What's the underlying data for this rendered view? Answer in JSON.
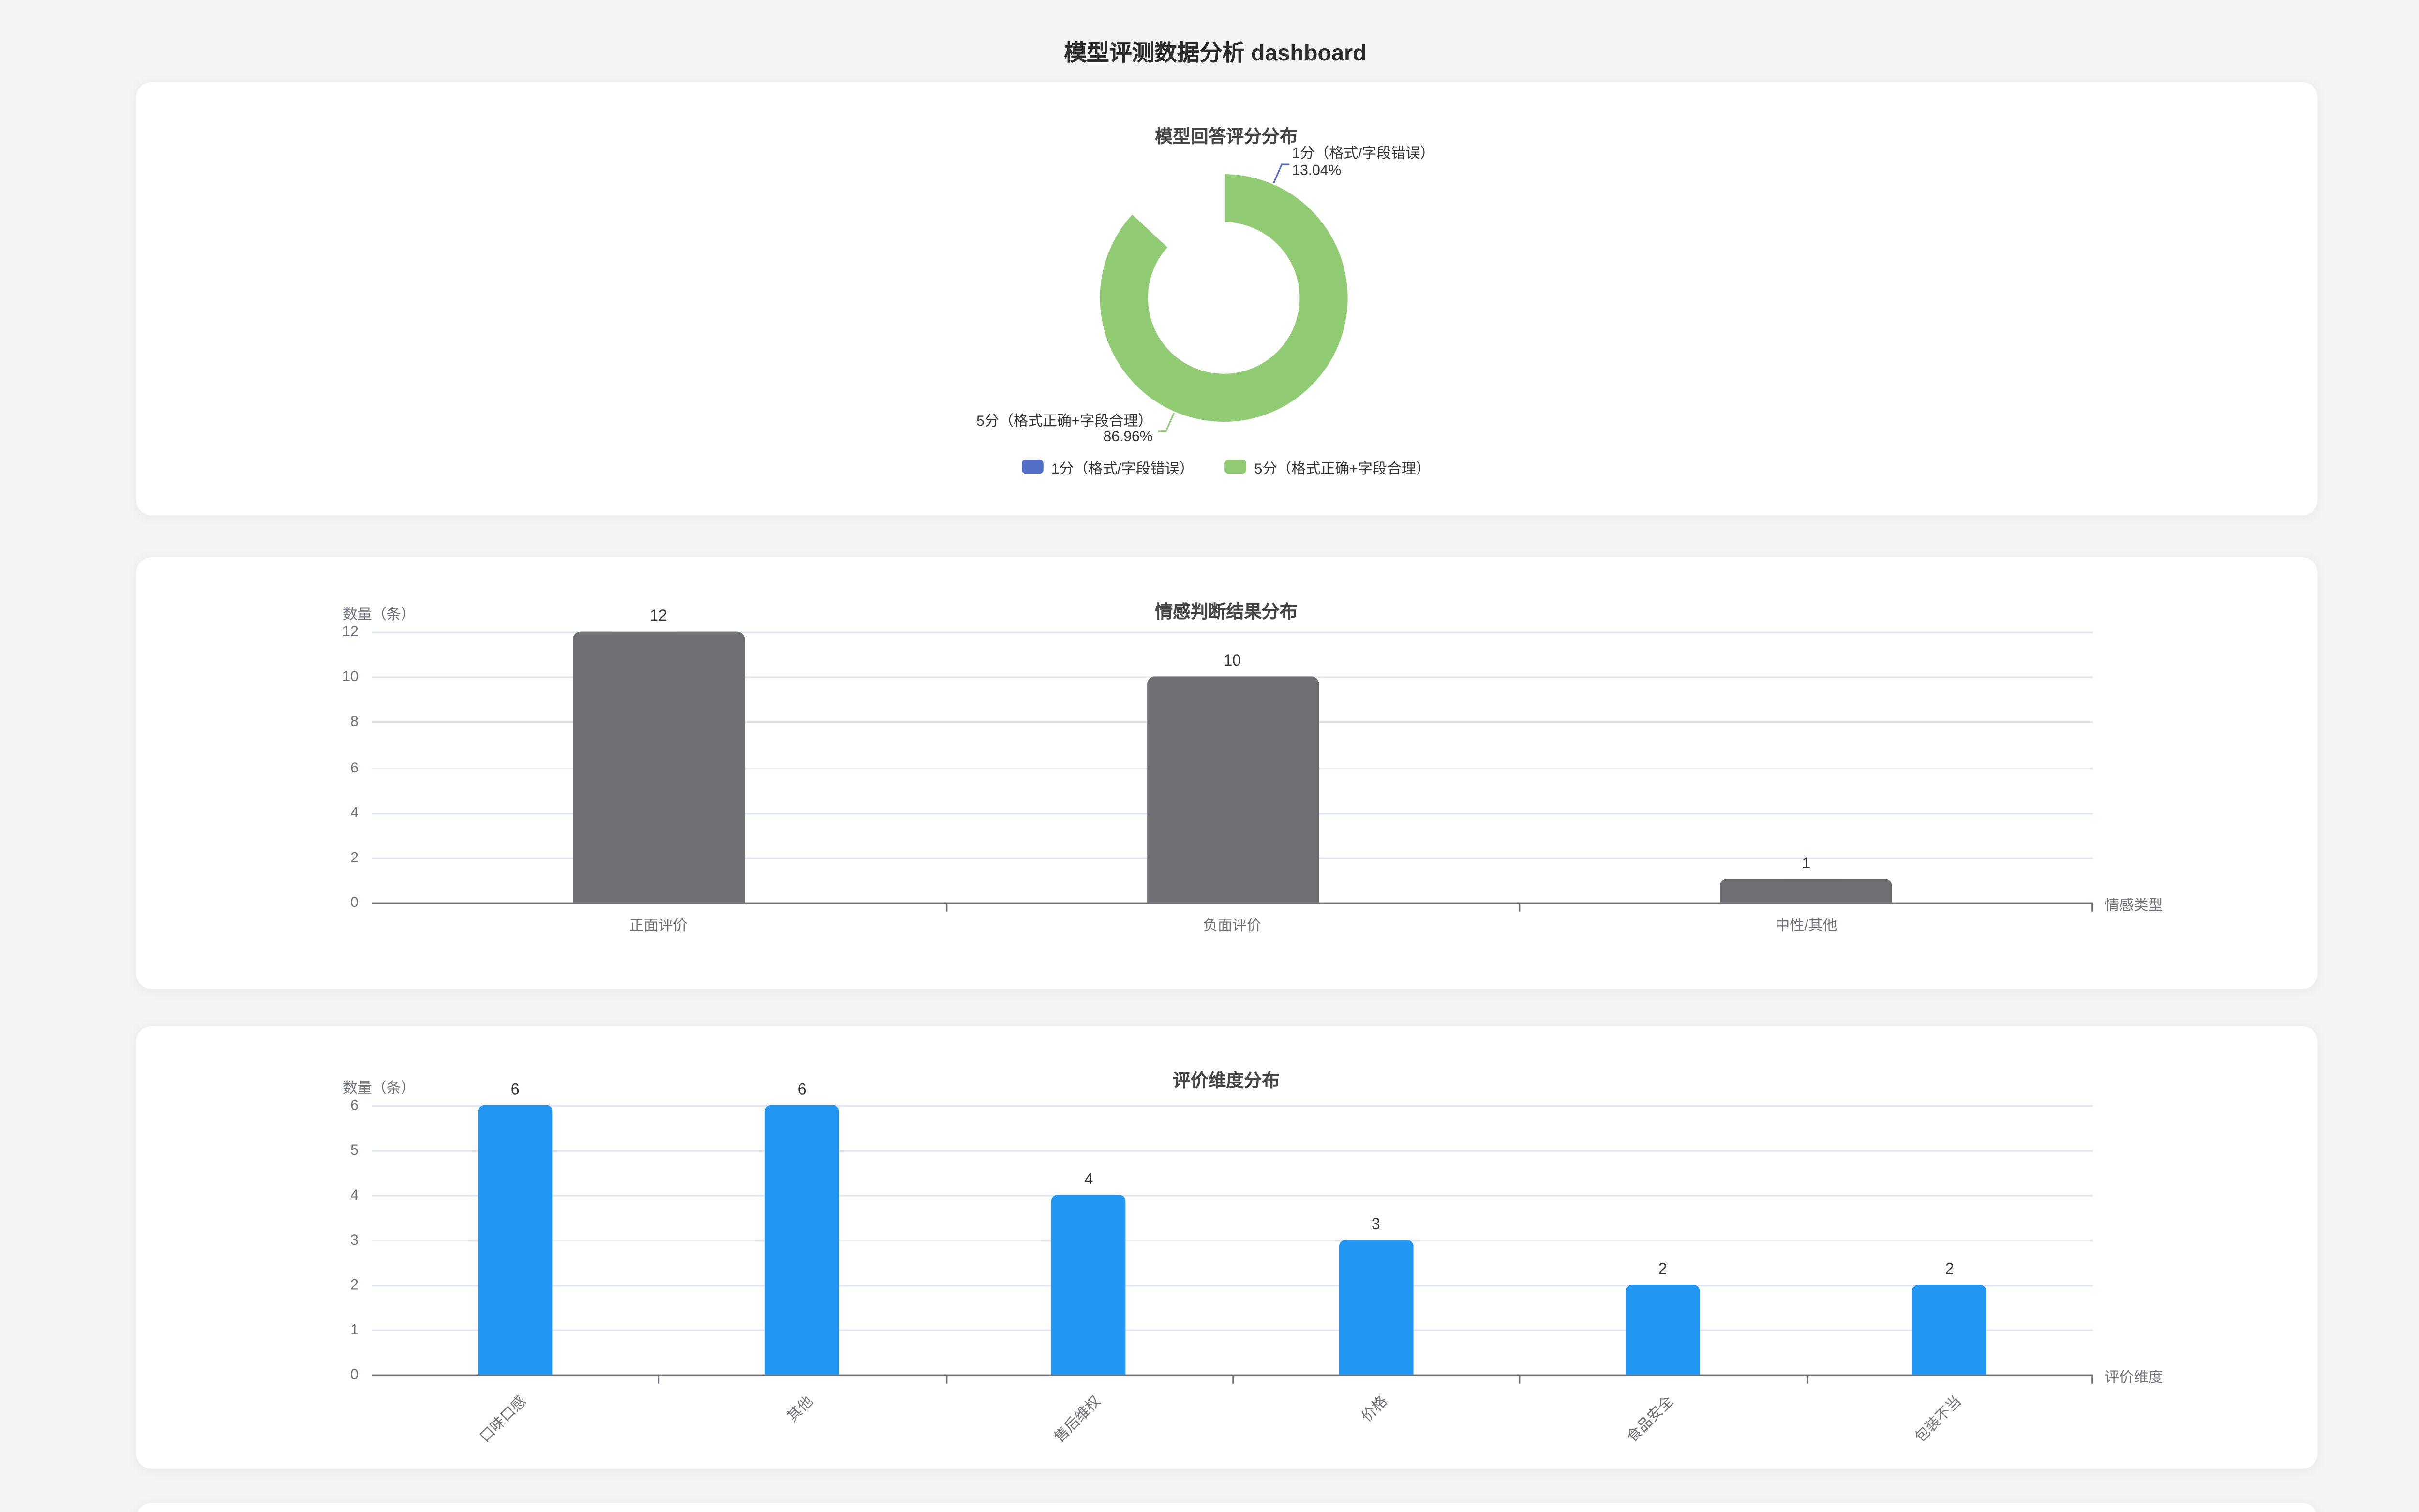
{
  "page": {
    "title": "模型评测数据分析 dashboard",
    "background_color": "#f4f4f5"
  },
  "style": {
    "grid_color": "#e0e6f1",
    "axis_color": "#6e7079",
    "label_color": "#333333",
    "title_color": "#464646"
  },
  "charts": {
    "score": {
      "title": "模型回答评分分布",
      "chart_data": {
        "type": "pie",
        "donut": true,
        "labels": [
          "1分（格式/字段错误）",
          "5分（格式正确+字段合理）"
        ],
        "values_percent": [
          13.04,
          86.96
        ],
        "colors": [
          "#5470c6",
          "#91cc75"
        ],
        "legend_position": "bottom"
      },
      "slice_labels": [
        {
          "line1": "1分（格式/字段错误）",
          "line2": "13.04%"
        },
        {
          "line1": "5分（格式正确+字段合理）",
          "line2": "86.96%"
        }
      ],
      "legend": [
        "1分（格式/字段错误）",
        "5分（格式正确+字段合理）"
      ]
    },
    "sentiment": {
      "title": "情感判断结果分布",
      "ylabel": "数量（条）",
      "xlabel": "情感类型",
      "chart_data": {
        "type": "bar",
        "categories": [
          "正面评价",
          "负面评价",
          "中性/其他"
        ],
        "values": [
          12,
          10,
          1
        ],
        "yticks": [
          0,
          2,
          4,
          6,
          8,
          10,
          12
        ],
        "ylim": [
          0,
          12
        ],
        "bar_color": "#6e7074",
        "grid": true,
        "legend_position": "none"
      }
    },
    "dimension": {
      "title": "评价维度分布",
      "ylabel": "数量（条）",
      "xlabel": "评价维度",
      "chart_data": {
        "type": "bar",
        "categories": [
          "口味口感",
          "其他",
          "售后维权",
          "价格",
          "食品安全",
          "包装不当"
        ],
        "values": [
          6,
          6,
          4,
          3,
          2,
          2
        ],
        "yticks": [
          0,
          1,
          2,
          3,
          4,
          5,
          6
        ],
        "ylim": [
          0,
          6
        ],
        "bar_color": "#2196f3",
        "grid": true,
        "legend_position": "none"
      }
    }
  }
}
